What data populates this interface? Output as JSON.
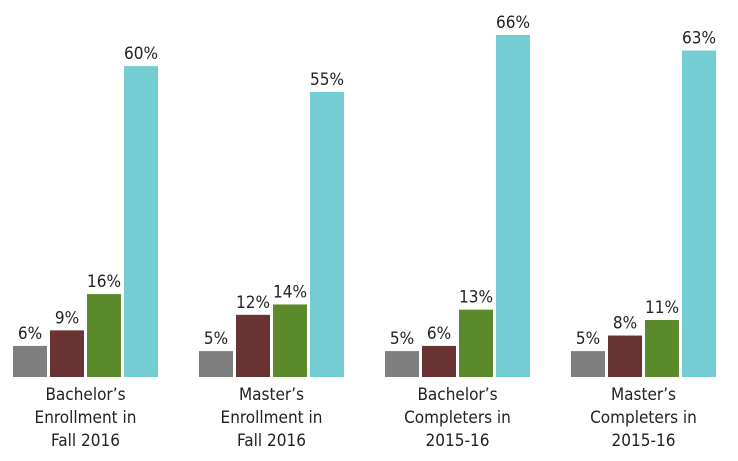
{
  "chart_data": {
    "type": "bar",
    "categories": [
      [
        "Bachelor’s",
        "Enrollment in",
        "Fall 2016"
      ],
      [
        "Master’s",
        "Enrollment in",
        "Fall 2016"
      ],
      [
        "Bachelor’s",
        "Completers in",
        "2015-16"
      ],
      [
        "Master’s",
        "Completers in",
        "2015-16"
      ]
    ],
    "series": [
      {
        "color": "#7f7f7f",
        "values": [
          6,
          5,
          5,
          5
        ],
        "value_labels": [
          "6%",
          "5%",
          "5%",
          "5%"
        ]
      },
      {
        "color": "#6a3333",
        "values": [
          9,
          12,
          6,
          8
        ],
        "value_labels": [
          "9%",
          "12%",
          "6%",
          "8%"
        ]
      },
      {
        "color": "#5b8a2b",
        "values": [
          16,
          14,
          13,
          11
        ],
        "value_labels": [
          "16%",
          "14%",
          "13%",
          "11%"
        ]
      },
      {
        "color": "#73cdd3",
        "values": [
          60,
          55,
          66,
          63
        ],
        "value_labels": [
          "60%",
          "55%",
          "66%",
          "63%"
        ]
      }
    ]
  }
}
